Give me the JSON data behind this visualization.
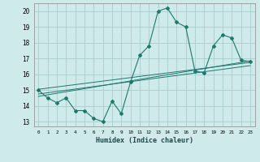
{
  "title": "",
  "xlabel": "Humidex (Indice chaleur)",
  "ylabel": "",
  "xlim": [
    -0.5,
    23.5
  ],
  "ylim": [
    12.7,
    20.5
  ],
  "yticks": [
    13,
    14,
    15,
    16,
    17,
    18,
    19,
    20
  ],
  "xticks": [
    0,
    1,
    2,
    3,
    4,
    5,
    6,
    7,
    8,
    9,
    10,
    11,
    12,
    13,
    14,
    15,
    16,
    17,
    18,
    19,
    20,
    21,
    22,
    23
  ],
  "bg_color": "#ceeaea",
  "grid_color": "#aacccc",
  "line_color": "#1a7a6e",
  "scatter_x": [
    0,
    1,
    2,
    3,
    4,
    5,
    6,
    7,
    8,
    9,
    10,
    11,
    12,
    13,
    14,
    15,
    16,
    17,
    18,
    19,
    20,
    21,
    22,
    23
  ],
  "scatter_y": [
    15.0,
    14.5,
    14.2,
    14.5,
    13.7,
    13.7,
    13.2,
    13.0,
    14.3,
    13.5,
    15.5,
    17.2,
    17.8,
    20.0,
    20.2,
    19.3,
    19.0,
    16.2,
    16.1,
    17.8,
    18.5,
    18.3,
    16.9,
    16.8
  ],
  "reg_line1": [
    [
      0,
      23
    ],
    [
      14.6,
      16.85
    ]
  ],
  "reg_line2": [
    [
      0,
      23
    ],
    [
      14.75,
      16.55
    ]
  ],
  "reg_line3": [
    [
      0,
      23
    ],
    [
      15.05,
      16.75
    ]
  ]
}
